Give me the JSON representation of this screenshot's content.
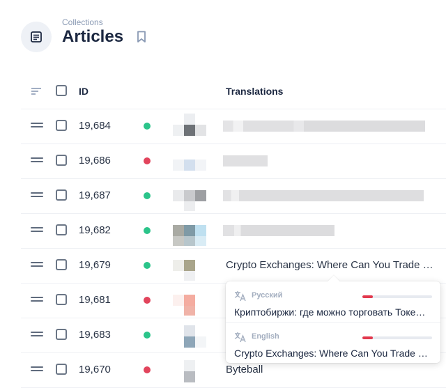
{
  "header": {
    "breadcrumb": "Collections",
    "title": "Articles",
    "icon": "article-icon",
    "bookmark_icon": "bookmark-icon"
  },
  "table": {
    "columns": {
      "id": "ID",
      "translations": "Translations"
    },
    "rows": [
      {
        "id": "19,684",
        "status": "published",
        "title": ""
      },
      {
        "id": "19,686",
        "status": "draft",
        "title": ""
      },
      {
        "id": "19,687",
        "status": "published",
        "title": ""
      },
      {
        "id": "19,682",
        "status": "published",
        "title": ""
      },
      {
        "id": "19,679",
        "status": "published",
        "title": "Crypto Exchanges: Where Can You Trade Cryptocurrencies"
      },
      {
        "id": "19,681",
        "status": "draft",
        "title": ""
      },
      {
        "id": "19,683",
        "status": "published",
        "title": ""
      },
      {
        "id": "19,670",
        "status": "draft",
        "title": "Byteball"
      }
    ]
  },
  "popover": {
    "translations": [
      {
        "language": "Русский",
        "progress": 0.15,
        "text": "Криптобиржи: где можно торговать Токенами"
      },
      {
        "language": "English",
        "progress": 0.15,
        "text": "Crypto Exchanges: Where Can You Trade Cryptocurrencies"
      }
    ]
  },
  "colors": {
    "published": "#2bc48a",
    "draft": "#e2445c",
    "progress": "#e2384d",
    "accent": "#1b2740"
  }
}
